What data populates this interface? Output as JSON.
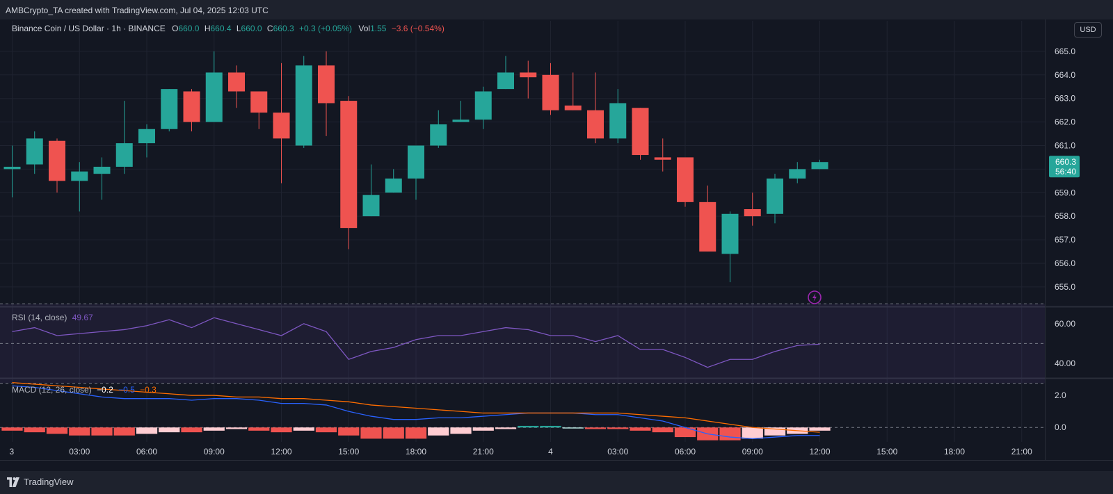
{
  "header": {
    "attribution": "AMBCrypto_TA created with TradingView.com, Jul 04, 2025 12:03 UTC"
  },
  "footer": {
    "brand": "TradingView"
  },
  "toolbar": {
    "currency_label": "USD"
  },
  "legend": {
    "symbol": "Binance Coin / US Dollar · 1h · BINANCE",
    "o_key": "O",
    "o_val": "660.0",
    "h_key": "H",
    "h_val": "660.4",
    "l_key": "L",
    "l_val": "660.0",
    "c_key": "C",
    "c_val": "660.3",
    "change": "+0.3 (+0.05%)",
    "vol_key": "Vol",
    "vol_val": "1.55",
    "vol_change": "−3.6 (−0.54%)"
  },
  "rsi_legend": {
    "name": "RSI (14, close)",
    "value": "49.67"
  },
  "macd_legend": {
    "name": "MACD (12, 26, close)",
    "hist": "−0.2",
    "macd": "−0.5",
    "signal": "−0.3"
  },
  "price_tag": {
    "price": "660.3",
    "countdown": "56:40"
  },
  "colors": {
    "up": "#26a69a",
    "down": "#ef5350",
    "background": "#131722",
    "rsi": "#7e57c2",
    "macd": "#2962ff",
    "signal": "#ff6d00"
  },
  "icons": {
    "alert": "lightning-bolt-icon",
    "logo": "tradingview-logo-icon"
  },
  "chart_data": [
    {
      "type": "candlestick",
      "title": "Binance Coin / US Dollar · 1h · BINANCE",
      "y_axis_ticks": [
        "665.0",
        "664.0",
        "663.0",
        "662.0",
        "661.0",
        "660.0",
        "659.0",
        "658.0",
        "657.0",
        "656.0",
        "655.0"
      ],
      "ylim": [
        654.2,
        666.0
      ],
      "x_tick_labels": [
        {
          "label": "3",
          "index": 0
        },
        {
          "label": "03:00",
          "index": 3
        },
        {
          "label": "06:00",
          "index": 6
        },
        {
          "label": "09:00",
          "index": 9
        },
        {
          "label": "12:00",
          "index": 12
        },
        {
          "label": "15:00",
          "index": 15
        },
        {
          "label": "18:00",
          "index": 18
        },
        {
          "label": "21:00",
          "index": 21
        },
        {
          "label": "4",
          "index": 24
        },
        {
          "label": "03:00",
          "index": 27
        },
        {
          "label": "06:00",
          "index": 30
        },
        {
          "label": "09:00",
          "index": 33
        },
        {
          "label": "12:00",
          "index": 36
        },
        {
          "label": "15:00",
          "index": 39
        },
        {
          "label": "18:00",
          "index": 42
        },
        {
          "label": "21:00",
          "index": 45
        }
      ],
      "candles": [
        {
          "o": 660.0,
          "h": 661.0,
          "l": 658.8,
          "c": 660.1
        },
        {
          "o": 660.2,
          "h": 661.6,
          "l": 659.8,
          "c": 661.3
        },
        {
          "o": 661.2,
          "h": 661.3,
          "l": 659.0,
          "c": 659.5
        },
        {
          "o": 659.5,
          "h": 660.3,
          "l": 658.2,
          "c": 659.9
        },
        {
          "o": 659.8,
          "h": 660.5,
          "l": 658.7,
          "c": 660.1
        },
        {
          "o": 660.1,
          "h": 662.9,
          "l": 659.8,
          "c": 661.1
        },
        {
          "o": 661.1,
          "h": 661.9,
          "l": 660.5,
          "c": 661.7
        },
        {
          "o": 661.7,
          "h": 663.4,
          "l": 661.6,
          "c": 663.4
        },
        {
          "o": 663.3,
          "h": 663.4,
          "l": 661.6,
          "c": 662.0
        },
        {
          "o": 662.0,
          "h": 665.0,
          "l": 662.0,
          "c": 664.1
        },
        {
          "o": 664.1,
          "h": 664.4,
          "l": 662.6,
          "c": 663.3
        },
        {
          "o": 663.3,
          "h": 663.3,
          "l": 661.7,
          "c": 662.4
        },
        {
          "o": 662.4,
          "h": 664.5,
          "l": 659.4,
          "c": 661.3
        },
        {
          "o": 661.0,
          "h": 664.8,
          "l": 660.9,
          "c": 664.4
        },
        {
          "o": 664.4,
          "h": 665.0,
          "l": 661.4,
          "c": 662.8
        },
        {
          "o": 662.9,
          "h": 663.1,
          "l": 656.6,
          "c": 657.5
        },
        {
          "o": 658.0,
          "h": 660.2,
          "l": 658.0,
          "c": 658.9
        },
        {
          "o": 659.0,
          "h": 660.0,
          "l": 659.0,
          "c": 659.6
        },
        {
          "o": 659.6,
          "h": 661.0,
          "l": 658.7,
          "c": 661.0
        },
        {
          "o": 661.0,
          "h": 662.5,
          "l": 660.9,
          "c": 661.9
        },
        {
          "o": 662.0,
          "h": 662.9,
          "l": 662.0,
          "c": 662.1
        },
        {
          "o": 662.1,
          "h": 663.5,
          "l": 661.7,
          "c": 663.3
        },
        {
          "o": 663.4,
          "h": 664.8,
          "l": 663.4,
          "c": 664.1
        },
        {
          "o": 664.1,
          "h": 664.6,
          "l": 663.0,
          "c": 663.9
        },
        {
          "o": 664.0,
          "h": 664.5,
          "l": 662.3,
          "c": 662.5
        },
        {
          "o": 662.7,
          "h": 664.1,
          "l": 662.5,
          "c": 662.5
        },
        {
          "o": 662.5,
          "h": 664.1,
          "l": 661.1,
          "c": 661.3
        },
        {
          "o": 661.3,
          "h": 663.4,
          "l": 661.1,
          "c": 662.8
        },
        {
          "o": 662.6,
          "h": 662.6,
          "l": 660.4,
          "c": 660.6
        },
        {
          "o": 660.5,
          "h": 661.3,
          "l": 659.9,
          "c": 660.4
        },
        {
          "o": 660.5,
          "h": 660.5,
          "l": 658.4,
          "c": 658.6
        },
        {
          "o": 658.6,
          "h": 659.3,
          "l": 656.5,
          "c": 656.5
        },
        {
          "o": 656.4,
          "h": 658.2,
          "l": 655.2,
          "c": 658.1
        },
        {
          "o": 658.3,
          "h": 659.0,
          "l": 657.6,
          "c": 658.0
        },
        {
          "o": 658.1,
          "h": 659.8,
          "l": 657.7,
          "c": 659.6
        },
        {
          "o": 659.6,
          "h": 660.3,
          "l": 659.4,
          "c": 660.0
        },
        {
          "o": 660.0,
          "h": 660.4,
          "l": 660.0,
          "c": 660.3
        }
      ]
    },
    {
      "type": "line",
      "title": "RSI (14, close)",
      "y_axis_ticks": [
        "60.00",
        "40.00"
      ],
      "ylim": [
        33,
        68
      ],
      "band": [
        30,
        70
      ],
      "midline": 50,
      "values": [
        56,
        58,
        54,
        55,
        56,
        57,
        59,
        62,
        58,
        63,
        60,
        57,
        54,
        60,
        56,
        42,
        46,
        48,
        52,
        54,
        54,
        56,
        58,
        57,
        54,
        54,
        51,
        54,
        47,
        47,
        43,
        38,
        42,
        42,
        46,
        49,
        49.67
      ]
    },
    {
      "type": "line",
      "title": "MACD (12, 26, close)",
      "y_axis_ticks": [
        "2.0",
        "0.0"
      ],
      "ylim": [
        -0.9,
        3.0
      ],
      "macd": [
        2.6,
        2.5,
        2.3,
        2.1,
        1.9,
        1.8,
        1.8,
        1.8,
        1.7,
        1.8,
        1.8,
        1.7,
        1.5,
        1.5,
        1.4,
        1.0,
        0.7,
        0.5,
        0.5,
        0.6,
        0.6,
        0.7,
        0.8,
        0.9,
        0.9,
        0.9,
        0.8,
        0.8,
        0.6,
        0.4,
        0.0,
        -0.4,
        -0.6,
        -0.7,
        -0.6,
        -0.5,
        -0.5
      ],
      "signal": [
        2.8,
        2.7,
        2.6,
        2.5,
        2.4,
        2.3,
        2.2,
        2.1,
        2.0,
        2.0,
        1.9,
        1.9,
        1.8,
        1.8,
        1.7,
        1.6,
        1.4,
        1.3,
        1.2,
        1.1,
        1.0,
        0.9,
        0.9,
        0.9,
        0.9,
        0.9,
        0.9,
        0.9,
        0.8,
        0.7,
        0.6,
        0.4,
        0.2,
        0.0,
        -0.1,
        -0.2,
        -0.3
      ],
      "histogram": [
        -0.2,
        -0.3,
        -0.4,
        -0.5,
        -0.5,
        -0.5,
        -0.4,
        -0.3,
        -0.3,
        -0.2,
        -0.1,
        -0.2,
        -0.3,
        -0.2,
        -0.3,
        -0.5,
        -0.7,
        -0.7,
        -0.7,
        -0.5,
        -0.4,
        -0.2,
        -0.1,
        0.1,
        0.1,
        0.0,
        -0.1,
        -0.1,
        -0.2,
        -0.3,
        -0.6,
        -0.8,
        -0.8,
        -0.7,
        -0.5,
        -0.4,
        -0.2
      ]
    }
  ]
}
